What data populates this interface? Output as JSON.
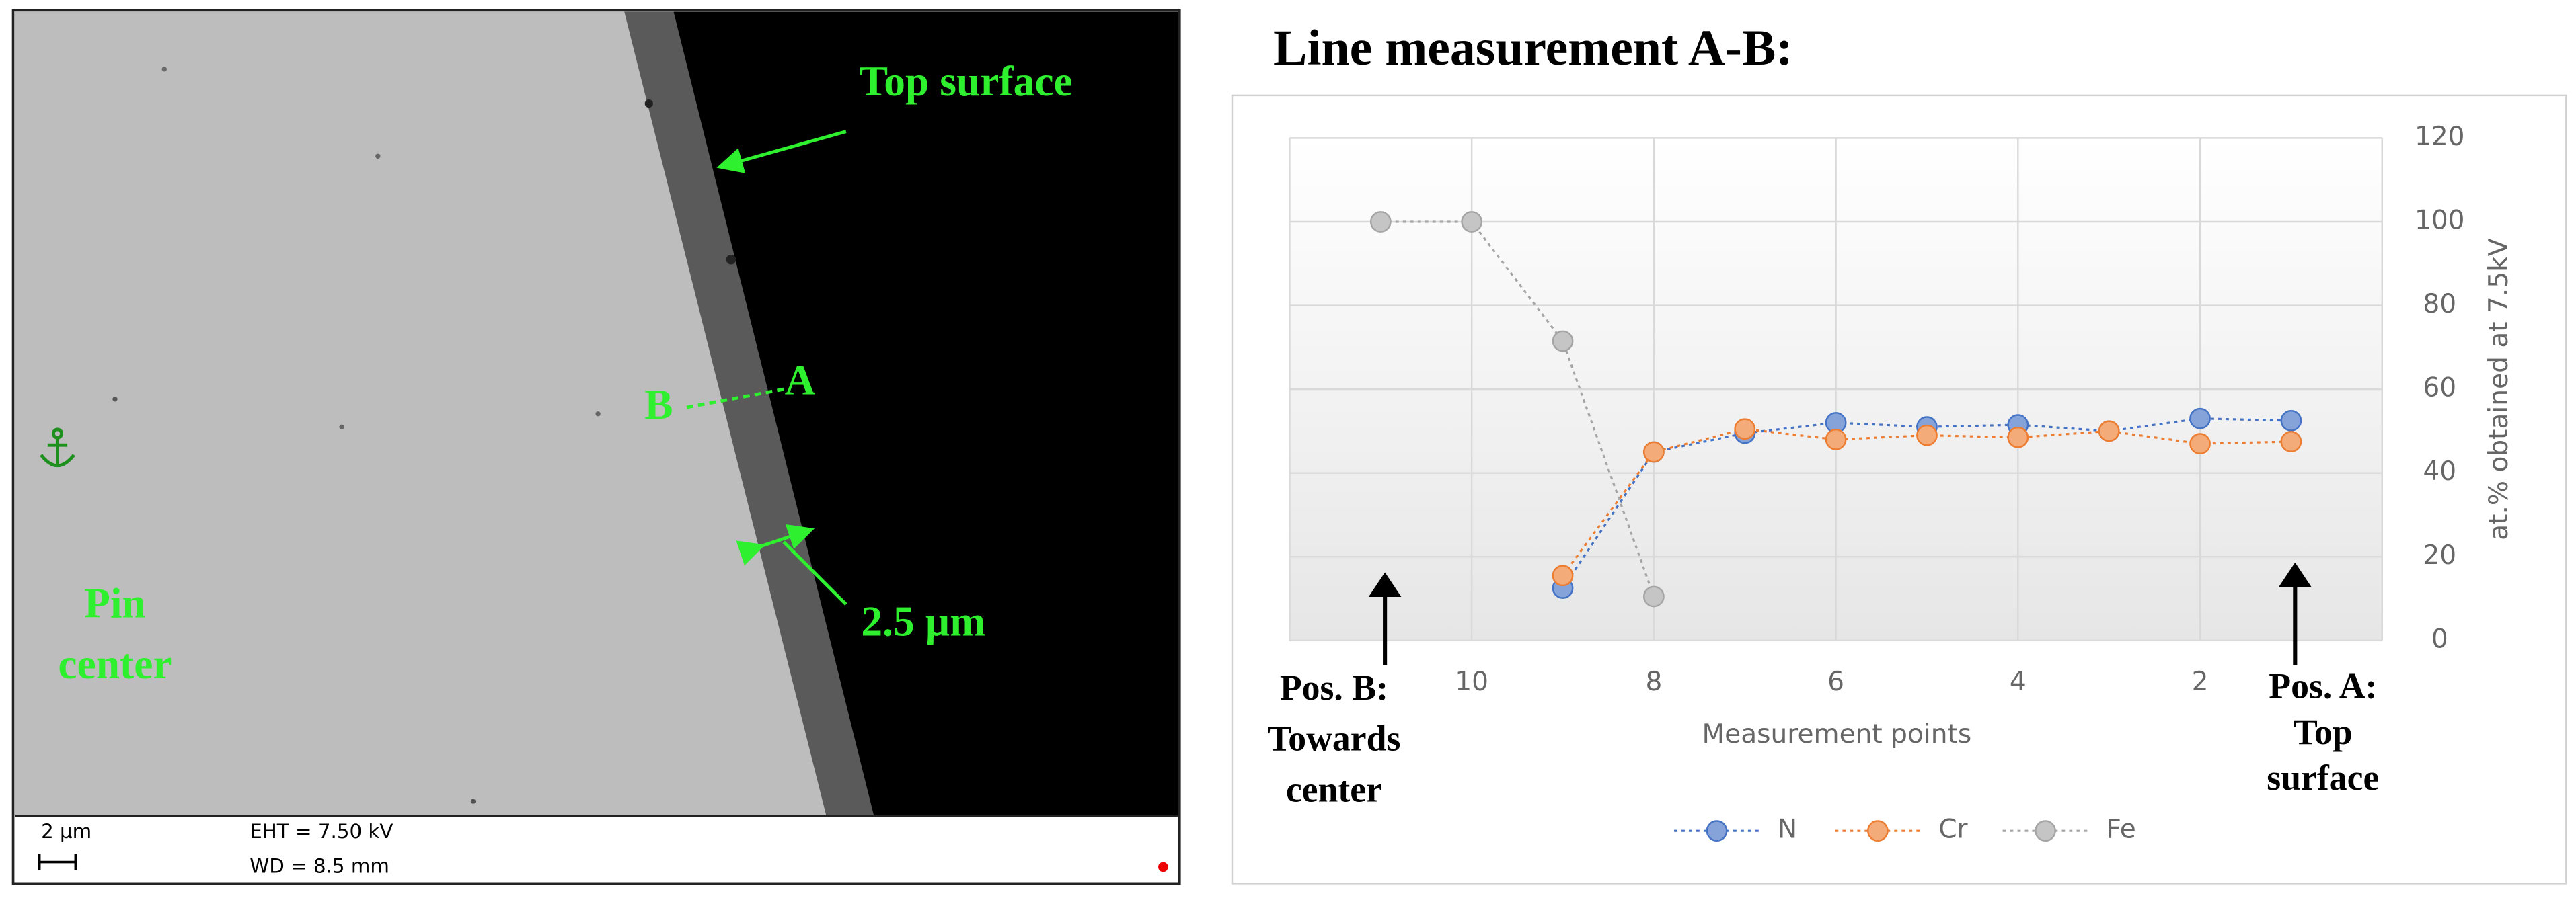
{
  "image": {
    "labels": [
      "Top surface",
      "A",
      "B",
      "2.5 µm",
      "Pin",
      "center"
    ],
    "info": {
      "scale": "2 µm",
      "eht": "EHT = 7.50 kV",
      "wd": "WD = 8.5 mm"
    }
  },
  "chart_data": {
    "type": "line",
    "title": "Line measurement A-B:",
    "x_label": "Measurement points",
    "y_label": "at.% obtained at 7.5kV",
    "x": [
      11,
      10,
      9,
      8,
      7,
      6,
      5,
      4,
      3,
      2,
      1
    ],
    "xlim": [
      12,
      0
    ],
    "xticks": [
      10,
      8,
      6,
      4,
      2
    ],
    "ylim": [
      0,
      120
    ],
    "yticks": [
      0,
      20,
      40,
      60,
      80,
      100,
      120
    ],
    "y_axis_side": "right",
    "grid": true,
    "legend": "bottom",
    "series": [
      {
        "name": "N",
        "color": "#4472c4",
        "values": [
          null,
          null,
          12.5,
          45,
          49.5,
          52,
          51,
          51.5,
          50,
          53,
          52.5
        ]
      },
      {
        "name": "Cr",
        "color": "#ed7d31",
        "values": [
          null,
          null,
          15.5,
          45,
          50.5,
          48,
          49,
          48.5,
          50,
          47,
          47.5
        ]
      },
      {
        "name": "Fe",
        "color": "#a5a5a5",
        "values": [
          100,
          100,
          71.5,
          10.5,
          null,
          null,
          null,
          null,
          null,
          null,
          null
        ]
      }
    ],
    "annotations": [
      [
        "Pos. B:",
        "Towards",
        "center"
      ],
      [
        "Pos. A:",
        "Top",
        "surface"
      ]
    ]
  }
}
